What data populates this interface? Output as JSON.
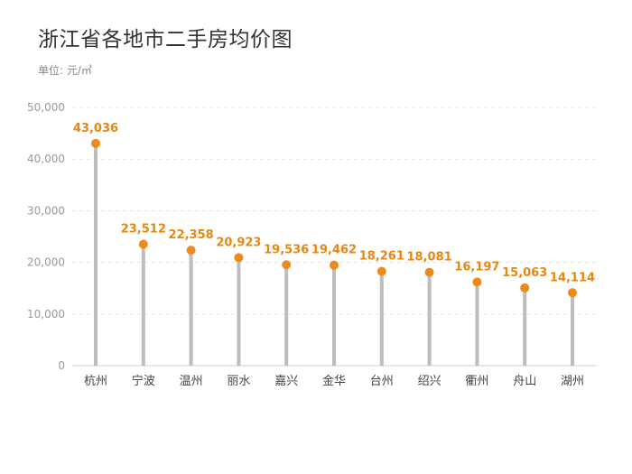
{
  "title": "浙江省各地市二手房均价图",
  "unit_label": "单位: 元/㎡",
  "colors": {
    "stem": "#bdbdbd",
    "point": "#ee8a1c",
    "label": "#e8860f",
    "grid": "#e4e4e4",
    "axis": "#cccccc"
  },
  "chart_data": {
    "type": "lollipop",
    "categories": [
      "杭州",
      "宁波",
      "温州",
      "丽水",
      "嘉兴",
      "金华",
      "台州",
      "绍兴",
      "衢州",
      "舟山",
      "湖州"
    ],
    "values": [
      43036,
      23512,
      22358,
      20923,
      19536,
      19462,
      18261,
      18081,
      16197,
      15063,
      14114
    ],
    "value_labels": [
      "43,036",
      "23,512",
      "22,358",
      "20,923",
      "19,536",
      "19,462",
      "18,261",
      "18,081",
      "16,197",
      "15,063",
      "14,114"
    ],
    "ylim": [
      0,
      50000
    ],
    "yticks": [
      0,
      10000,
      20000,
      30000,
      40000,
      50000
    ],
    "ytick_labels": [
      "0",
      "10,000",
      "20,000",
      "30,000",
      "40,000",
      "50,000"
    ],
    "grid": true,
    "legend": "none"
  }
}
